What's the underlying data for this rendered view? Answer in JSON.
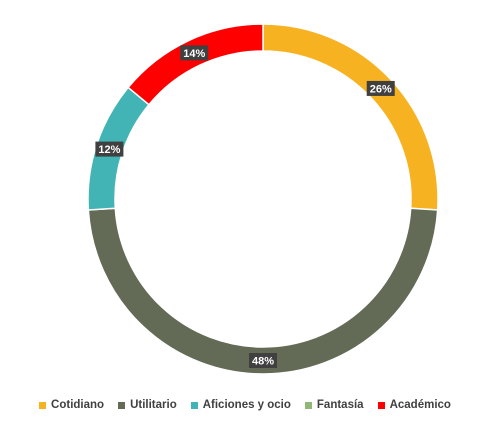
{
  "chart_data": {
    "type": "pie",
    "variant": "donut",
    "slices": [
      {
        "label": "Cotidiano",
        "value": 26,
        "display": "26%",
        "color": "#F6B221"
      },
      {
        "label": "Utilitario",
        "value": 48,
        "display": "48%",
        "color": "#636A55"
      },
      {
        "label": "Aficiones y ocio",
        "value": 12,
        "display": "12%",
        "color": "#42B4B5"
      },
      {
        "label": "Fantasía",
        "value": 0,
        "display": "",
        "color": "#8FB876"
      },
      {
        "label": "Académico",
        "value": 14,
        "display": "14%",
        "color": "#FF0000"
      }
    ],
    "legend_position": "bottom",
    "label_style": "dark boxes with white text"
  }
}
